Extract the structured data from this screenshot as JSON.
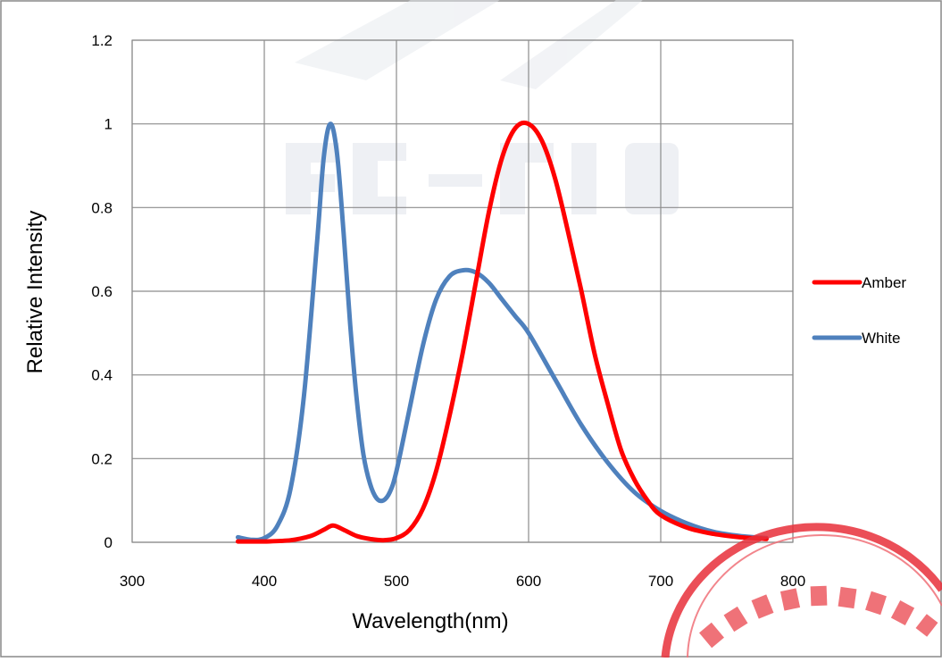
{
  "chart_data": {
    "type": "line",
    "title": "",
    "xlabel": "Wavelength(nm)",
    "ylabel": "Relative Intensity",
    "xlim": [
      300,
      800
    ],
    "ylim": [
      0,
      1.2
    ],
    "x_ticks": [
      "300",
      "400",
      "500",
      "600",
      "700",
      "800"
    ],
    "y_ticks": [
      "0",
      "0.2",
      "0.4",
      "0.6",
      "0.8",
      "1",
      "1.2"
    ],
    "grid": true,
    "legend_position": "right",
    "series": [
      {
        "name": "Amber",
        "color": "#ff0000",
        "x": [
          380,
          400,
          420,
          435,
          445,
          452,
          460,
          470,
          480,
          490,
          500,
          510,
          520,
          530,
          540,
          550,
          560,
          570,
          580,
          590,
          600,
          610,
          620,
          630,
          640,
          650,
          660,
          670,
          680,
          690,
          700,
          720,
          740,
          760,
          780
        ],
        "y": [
          0.002,
          0.002,
          0.005,
          0.015,
          0.03,
          0.04,
          0.03,
          0.015,
          0.008,
          0.005,
          0.01,
          0.03,
          0.08,
          0.17,
          0.3,
          0.45,
          0.62,
          0.79,
          0.92,
          0.99,
          1.0,
          0.96,
          0.87,
          0.74,
          0.6,
          0.45,
          0.33,
          0.22,
          0.15,
          0.1,
          0.065,
          0.035,
          0.02,
          0.012,
          0.008
        ]
      },
      {
        "name": "White",
        "color": "#4f81bd",
        "x": [
          380,
          390,
          400,
          410,
          420,
          430,
          440,
          445,
          450,
          455,
          460,
          465,
          470,
          475,
          480,
          485,
          490,
          495,
          500,
          510,
          520,
          530,
          540,
          550,
          560,
          570,
          580,
          590,
          600,
          620,
          640,
          660,
          680,
          700,
          720,
          740,
          760,
          780
        ],
        "y": [
          0.012,
          0.006,
          0.01,
          0.04,
          0.13,
          0.35,
          0.72,
          0.92,
          1.0,
          0.93,
          0.74,
          0.52,
          0.34,
          0.21,
          0.14,
          0.105,
          0.1,
          0.12,
          0.17,
          0.32,
          0.47,
          0.58,
          0.635,
          0.65,
          0.645,
          0.62,
          0.58,
          0.54,
          0.5,
          0.39,
          0.28,
          0.19,
          0.12,
          0.075,
          0.045,
          0.025,
          0.015,
          0.01
        ]
      }
    ]
  }
}
